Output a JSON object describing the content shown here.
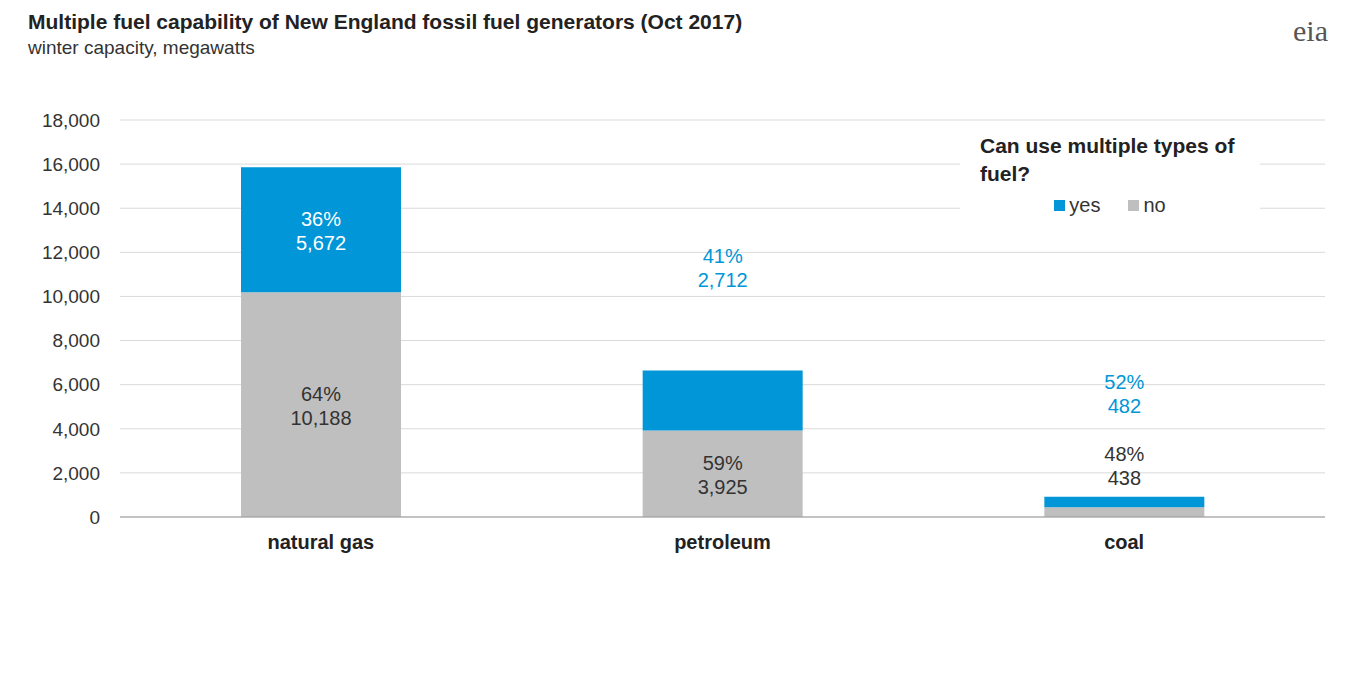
{
  "chart_data": {
    "type": "bar",
    "title": "Multiple fuel capability of New England fossil fuel generators (Oct 2017)",
    "subtitle": "winter capacity, megawatts",
    "logo": "eia",
    "legend_title": "Can use multiple types of fuel?",
    "categories": [
      "natural gas",
      "petroleum",
      "coal"
    ],
    "series": [
      {
        "name": "yes",
        "color": "#0096d7",
        "values": [
          5672,
          2712,
          482
        ],
        "value_labels": [
          "5,672",
          "2,712",
          "482"
        ],
        "percent_labels": [
          "36%",
          "41%",
          "52%"
        ]
      },
      {
        "name": "no",
        "color": "#bfbfbf",
        "values": [
          10188,
          3925,
          438
        ],
        "value_labels": [
          "10,188",
          "3,925",
          "438"
        ],
        "percent_labels": [
          "64%",
          "59%",
          "48%"
        ]
      }
    ],
    "ylim": [
      0,
      18000
    ],
    "yticks": [
      0,
      {
        "value": 2000,
        "label": "2,000"
      },
      {
        "value": 4000,
        "label": "4,000"
      },
      {
        "value": 6000,
        "label": "6,000"
      },
      {
        "value": 8000,
        "label": "8,000"
      },
      {
        "value": 10000,
        "label": "10,000"
      },
      {
        "value": 12000,
        "label": "12,000"
      },
      {
        "value": 14000,
        "label": "14,000"
      },
      {
        "value": 16000,
        "label": "16,000"
      },
      {
        "value": 18000,
        "label": "18,000"
      }
    ],
    "grid": true,
    "stacked": true,
    "data_labels": true,
    "legend": "upper right"
  }
}
